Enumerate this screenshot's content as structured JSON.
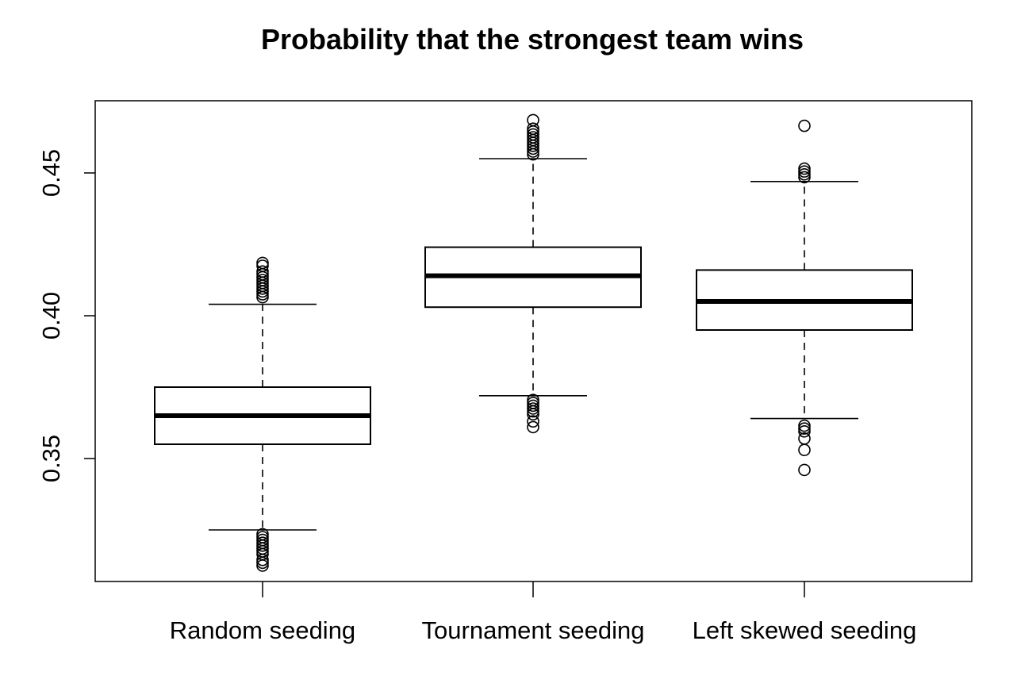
{
  "chart_data": {
    "type": "boxplot",
    "title": "Probability that the strongest team wins",
    "xlabel": "",
    "ylabel": "",
    "ylim": [
      0.31,
      0.475
    ],
    "y_ticks": [
      "0.35",
      "0.40",
      "0.45"
    ],
    "y_tick_values": [
      0.35,
      0.4,
      0.45
    ],
    "grid": false,
    "categories": [
      "Random seeding",
      "Tournament seeding",
      "Left skewed seeding"
    ],
    "boxes": [
      {
        "name": "Random seeding",
        "q1": 0.355,
        "median": 0.365,
        "q3": 0.375,
        "whisker_low": 0.325,
        "whisker_high": 0.404,
        "outliers": [
          0.3125,
          0.3135,
          0.3145,
          0.3165,
          0.3175,
          0.3185,
          0.3195,
          0.3205,
          0.3215,
          0.3225,
          0.3235,
          0.4065,
          0.4075,
          0.4085,
          0.4095,
          0.4105,
          0.4115,
          0.4125,
          0.4135,
          0.4145,
          0.4155,
          0.4175,
          0.4185
        ]
      },
      {
        "name": "Tournament seeding",
        "q1": 0.403,
        "median": 0.414,
        "q3": 0.424,
        "whisker_low": 0.372,
        "whisker_high": 0.455,
        "outliers": [
          0.361,
          0.363,
          0.3655,
          0.3665,
          0.3675,
          0.3685,
          0.3695,
          0.3705,
          0.4565,
          0.4575,
          0.4585,
          0.4595,
          0.4605,
          0.4615,
          0.4625,
          0.4635,
          0.4645,
          0.4655,
          0.4685
        ]
      },
      {
        "name": "Left skewed seeding",
        "q1": 0.395,
        "median": 0.405,
        "q3": 0.416,
        "whisker_low": 0.364,
        "whisker_high": 0.447,
        "outliers": [
          0.346,
          0.353,
          0.357,
          0.3595,
          0.3605,
          0.3615,
          0.4485,
          0.4495,
          0.4505,
          0.4515,
          0.4665
        ]
      }
    ]
  }
}
